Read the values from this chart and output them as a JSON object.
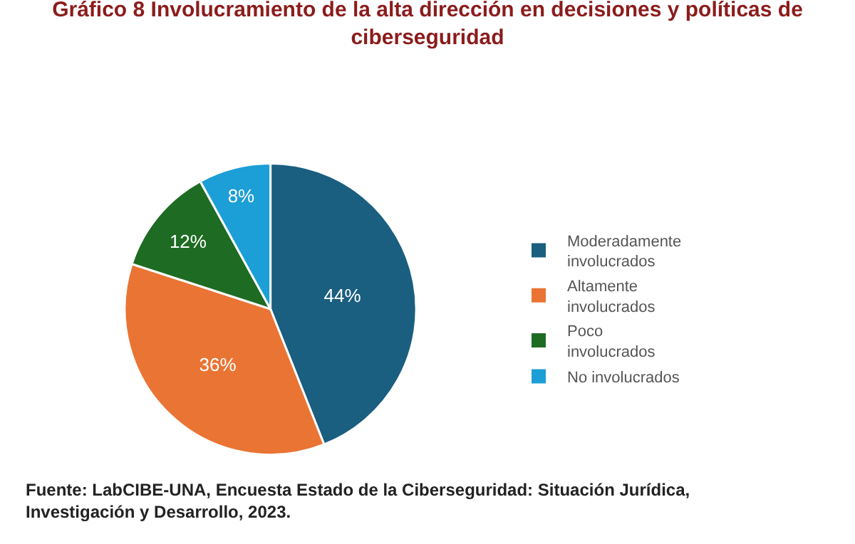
{
  "chart_data": {
    "type": "pie",
    "title": "Gráfico 8 Involucramiento de la alta dirección en decisiones y políticas de ciberseguridad",
    "categories": [
      "Moderadamente involucrados",
      "Altamente involucrados",
      "Poco involucrados",
      "No involucrados"
    ],
    "values": [
      44,
      36,
      12,
      8
    ],
    "colors": [
      "#1a5e80",
      "#ea7434",
      "#1e6b24",
      "#1c9ed6"
    ],
    "value_labels": [
      "44%",
      "36%",
      "12%",
      "8%"
    ],
    "legend": "right",
    "annotations": [
      "Fuente: LabCIBE-UNA, Encuesta Estado de la Ciberseguridad: Situación Jurídica, Investigación y Desarrollo, 2023."
    ]
  }
}
